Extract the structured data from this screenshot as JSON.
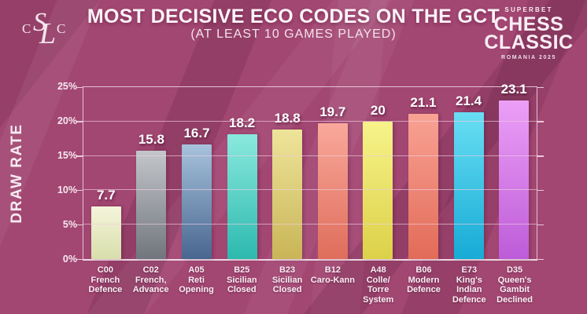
{
  "header": {
    "title": "MOST DECISIVE ECO CODES ON THE GCT",
    "subtitle": "(AT LEAST 10 GAMES PLAYED)"
  },
  "logos": {
    "cslc": {
      "c1": "C",
      "s": "S",
      "l": "L",
      "c2": "C"
    },
    "event": {
      "superbet": "SUPERBET",
      "chess": "CHESS",
      "classic": "CLASSIC",
      "romania": "ROMANIA 2025"
    }
  },
  "colors": {
    "background": "#a24672",
    "axis": "#f3d8e7",
    "gridline": "#eecee0",
    "text": "#f8eef4"
  },
  "chart_data": {
    "type": "bar",
    "title": "MOST DECISIVE ECO CODES ON THE GCT",
    "subtitle": "(AT LEAST 10 GAMES PLAYED)",
    "ylabel": "DRAW RATE",
    "xlabel": "",
    "ylim": [
      0,
      25
    ],
    "grid": true,
    "legend": "none",
    "yticks": [
      {
        "v": 0,
        "label": "0%"
      },
      {
        "v": 5,
        "label": "5%"
      },
      {
        "v": 10,
        "label": "10%"
      },
      {
        "v": 15,
        "label": "15%"
      },
      {
        "v": 20,
        "label": "20%"
      },
      {
        "v": 25,
        "label": "25%"
      }
    ],
    "categories": [
      "C00 French Defence",
      "C02 French, Advance",
      "A05 Reti Opening",
      "B25 Sicilian Closed",
      "B23 Sicilian Closed",
      "B12 Caro-Kann",
      "A48 Colle/Torre System",
      "B06 Modern Defence",
      "E73 King's Indian Defence",
      "D35 Queen's Gambit Declined"
    ],
    "values": [
      7.7,
      15.8,
      16.7,
      18.2,
      18.8,
      19.7,
      20,
      21.1,
      21.4,
      23.1
    ],
    "bars": [
      {
        "code": "C00",
        "label_lines": [
          "C00",
          "French",
          "Defence"
        ],
        "value": 7.7,
        "display": "7.7",
        "color_top": "#f4f5da",
        "color_bottom": "#d8deac"
      },
      {
        "code": "C02",
        "label_lines": [
          "C02",
          "French,",
          "Advance"
        ],
        "value": 15.8,
        "display": "15.8",
        "color_top": "#c3c6ca",
        "color_bottom": "#71767e"
      },
      {
        "code": "A05",
        "label_lines": [
          "A05",
          "Reti",
          "Opening"
        ],
        "value": 16.7,
        "display": "16.7",
        "color_top": "#a6c2dc",
        "color_bottom": "#48668f"
      },
      {
        "code": "B25",
        "label_lines": [
          "B25",
          "Sicilian",
          "Closed"
        ],
        "value": 18.2,
        "display": "18.2",
        "color_top": "#8ae9de",
        "color_bottom": "#2db9ae"
      },
      {
        "code": "B23",
        "label_lines": [
          "B23",
          "Sicilian",
          "Closed"
        ],
        "value": 18.8,
        "display": "18.8",
        "color_top": "#eee49a",
        "color_bottom": "#c9b557"
      },
      {
        "code": "B12",
        "label_lines": [
          "B12",
          "Caro-Kann"
        ],
        "value": 19.7,
        "display": "19.7",
        "color_top": "#f9a89b",
        "color_bottom": "#df6d5b"
      },
      {
        "code": "A48",
        "label_lines": [
          "A48",
          "Colle/",
          "Torre",
          "System"
        ],
        "value": 20,
        "display": "20",
        "color_top": "#f7f38a",
        "color_bottom": "#dcd148"
      },
      {
        "code": "B06",
        "label_lines": [
          "B06",
          "Modern",
          "Defence"
        ],
        "value": 21.1,
        "display": "21.1",
        "color_top": "#f9a294",
        "color_bottom": "#e26b58"
      },
      {
        "code": "E73",
        "label_lines": [
          "E73",
          "King's",
          "Indian",
          "Defence"
        ],
        "value": 21.4,
        "display": "21.4",
        "color_top": "#69def4",
        "color_bottom": "#17abd5"
      },
      {
        "code": "D35",
        "label_lines": [
          "D35",
          "Queen's",
          "Gambit",
          "Declined"
        ],
        "value": 23.1,
        "display": "23.1",
        "color_top": "#ec9ff7",
        "color_bottom": "#bd5cd8"
      }
    ]
  }
}
